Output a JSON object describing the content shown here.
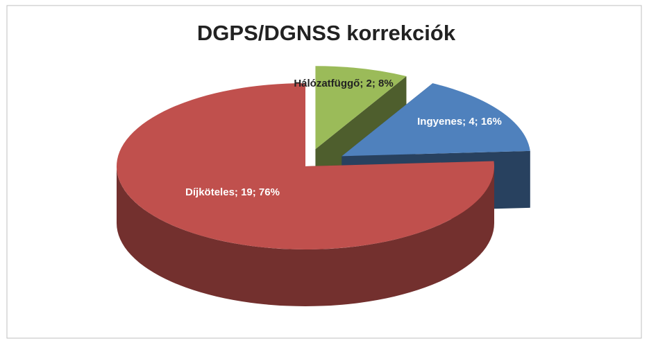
{
  "chart_data": {
    "type": "pie",
    "title": "DGPS/DGNSS korrekciók",
    "categories": [
      "Díjköteles",
      "Ingyenes",
      "Hálózatfüggő"
    ],
    "values": [
      19,
      4,
      2
    ],
    "value_labels": [
      "Díjköteles; 19; 76%",
      "Ingyenes; 4; 16%",
      "Hálózatfüggő; 2; 8%"
    ],
    "colors": [
      "#c0504d",
      "#4f81bd",
      "#9bbb59"
    ],
    "exploded": true,
    "three_d": true
  }
}
